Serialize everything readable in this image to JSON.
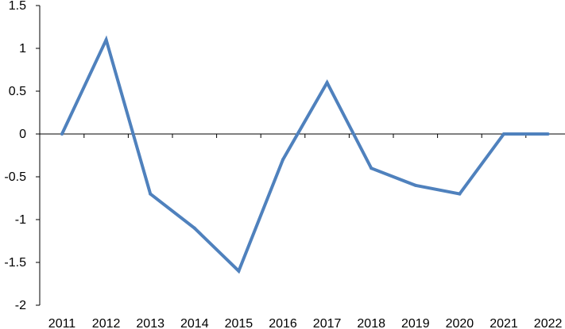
{
  "chart_data": {
    "type": "line",
    "title": "",
    "xlabel": "",
    "ylabel": "",
    "categories": [
      "2011",
      "2012",
      "2013",
      "2014",
      "2015",
      "2016",
      "2017",
      "2018",
      "2019",
      "2020",
      "2021",
      "2022"
    ],
    "series": [
      {
        "values": [
          0,
          1.1,
          -0.7,
          -1.1,
          -1.6,
          -0.3,
          0.6,
          -0.4,
          -0.6,
          -0.7,
          0,
          0
        ],
        "color": "#4f81bd"
      }
    ],
    "ylim": [
      -2,
      1.5
    ],
    "y_ticks": [
      "1.5",
      "1",
      "0.5",
      "0",
      "-0.5",
      "-1",
      "-1.5",
      "-2"
    ],
    "y_tick_values": [
      1.5,
      1,
      0.5,
      0,
      -0.5,
      -1,
      -1.5,
      -2
    ],
    "grid": false,
    "legend": "none",
    "x_axis_at": 0,
    "axis_color": "#000000"
  }
}
